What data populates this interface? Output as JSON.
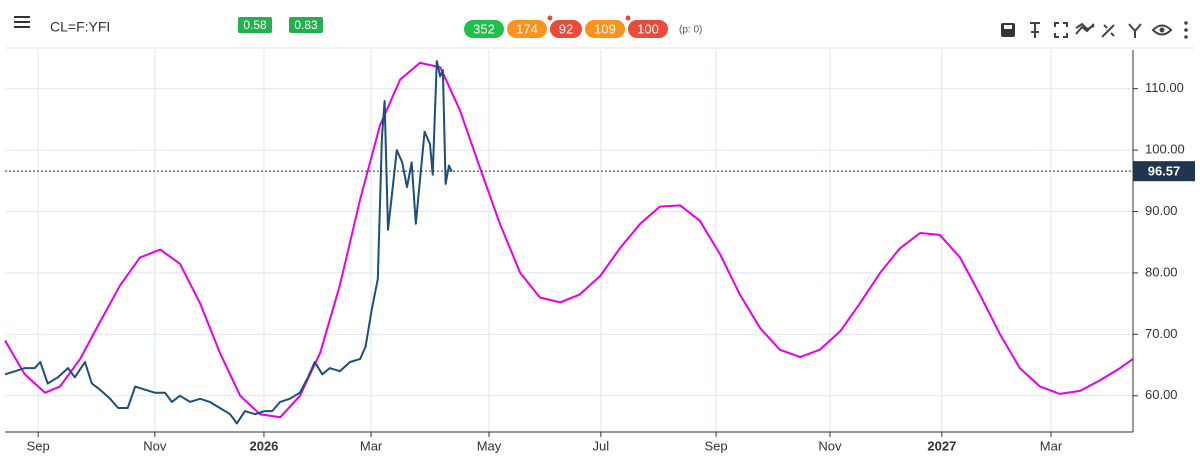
{
  "header": {
    "symbol": "CL=F:YFI",
    "badges": [
      {
        "value": 0.58,
        "color": "#22b14c"
      },
      {
        "value": 0.83,
        "color": "#22b14c"
      }
    ],
    "scores": [
      {
        "value": 352,
        "color": "#1fbf4a",
        "dot": false
      },
      {
        "value": 174,
        "color": "#f7931e",
        "dot": false
      },
      {
        "value": 92,
        "color": "#e84a3c",
        "dot": true
      },
      {
        "value": 109,
        "color": "#f7931e",
        "dot": false
      },
      {
        "value": 100,
        "color": "#e84a3c",
        "dot": true
      }
    ],
    "p_label": "(p: 0)"
  },
  "chart_data": {
    "type": "line",
    "xlim": [
      2025.618,
      2027.282
    ],
    "ylim": [
      54.1,
      116.3
    ],
    "xticks": [
      {
        "value": 2025.667,
        "label": "Sep"
      },
      {
        "value": 2025.839,
        "label": "Nov"
      },
      {
        "value": 2026,
        "label": "2026"
      },
      {
        "value": 2026.158,
        "label": "Mar"
      },
      {
        "value": 2026.332,
        "label": "May"
      },
      {
        "value": 2026.497,
        "label": "Jul"
      },
      {
        "value": 2026.667,
        "label": "Sep"
      },
      {
        "value": 2026.835,
        "label": "Nov"
      },
      {
        "value": 2027,
        "label": "2027"
      },
      {
        "value": 2027.161,
        "label": "Mar"
      }
    ],
    "yticks": [
      {
        "value": 60,
        "label": "60.00"
      },
      {
        "value": 70,
        "label": "70.00"
      },
      {
        "value": 80,
        "label": "80.00"
      },
      {
        "value": 90,
        "label": "90.00"
      },
      {
        "value": 100,
        "label": "100.00"
      },
      {
        "value": 110,
        "label": "110.00"
      }
    ],
    "grid": true,
    "last_value": 96.57,
    "series": [
      {
        "color": "#e600e6",
        "x": [
          2025.618,
          2025.647,
          2025.677,
          2025.699,
          2025.729,
          2025.758,
          2025.788,
          2025.817,
          2025.847,
          2025.876,
          2025.906,
          2025.935,
          2025.965,
          2025.994,
          2026.024,
          2026.053,
          2026.083,
          2026.112,
          2026.142,
          2026.171,
          2026.201,
          2026.23,
          2026.26,
          2026.289,
          2026.319,
          2026.348,
          2026.378,
          2026.407,
          2026.437,
          2026.466,
          2026.496,
          2026.525,
          2026.555,
          2026.584,
          2026.614,
          2026.643,
          2026.673,
          2026.702,
          2026.732,
          2026.761,
          2026.791,
          2026.82,
          2026.85,
          2026.879,
          2026.909,
          2026.938,
          2026.968,
          2026.997,
          2027.027,
          2027.056,
          2027.086,
          2027.115,
          2027.145,
          2027.174,
          2027.204,
          2027.233,
          2027.263,
          2027.282
        ],
        "values": [
          69,
          63.5,
          60.5,
          61.5,
          66,
          72,
          78,
          82.5,
          83.8,
          81.5,
          75,
          67,
          60,
          57,
          56.5,
          60,
          67,
          78,
          92,
          104,
          111.5,
          114.2,
          113.5,
          106.5,
          97,
          88,
          80,
          76,
          75.2,
          76.5,
          79.5,
          84,
          88,
          90.8,
          91,
          88.5,
          83,
          76.5,
          71,
          67.5,
          66.3,
          67.5,
          70.5,
          75,
          80,
          84,
          86.5,
          86.2,
          82.5,
          76.5,
          70,
          64.5,
          61.5,
          60.3,
          60.8,
          62.5,
          64.5,
          66
        ]
      },
      {
        "color": "#1f4e79",
        "x": [
          2025.618,
          2025.633,
          2025.647,
          2025.662,
          2025.67,
          2025.681,
          2025.696,
          2025.711,
          2025.721,
          2025.736,
          2025.746,
          2025.758,
          2025.773,
          2025.785,
          2025.799,
          2025.81,
          2025.824,
          2025.839,
          2025.854,
          2025.864,
          2025.876,
          2025.891,
          2025.906,
          2025.92,
          2025.935,
          2025.95,
          2025.96,
          2025.972,
          2025.987,
          2026.001,
          2026.012,
          2026.024,
          2026.038,
          2026.053,
          2026.065,
          2026.075,
          2026.086,
          2026.097,
          2026.112,
          2026.127,
          2026.142,
          2026.15,
          2026.159,
          2026.168,
          2026.174,
          2026.178,
          2026.183,
          2026.189,
          2026.196,
          2026.204,
          2026.211,
          2026.218,
          2026.224,
          2026.23,
          2026.237,
          2026.245,
          2026.249,
          2026.255,
          2026.26,
          2026.264,
          2026.268,
          2026.273,
          2026.277
        ],
        "values": [
          63.5,
          64,
          64.5,
          64.5,
          65.5,
          62,
          63,
          64.5,
          63,
          65.5,
          62,
          61,
          59.5,
          58,
          58,
          61.5,
          61,
          60.5,
          60.5,
          59,
          60,
          59,
          59.5,
          59,
          58,
          57,
          55.5,
          57.5,
          57,
          57.5,
          57.5,
          59,
          59.5,
          60.5,
          63,
          65.5,
          63.5,
          64.5,
          64,
          65.5,
          66,
          68,
          74,
          79,
          102,
          108,
          87,
          93,
          100,
          98,
          94,
          98,
          88,
          95,
          103,
          101,
          96,
          114.5,
          112,
          113,
          94.5,
          97.5,
          96.5
        ]
      }
    ]
  }
}
